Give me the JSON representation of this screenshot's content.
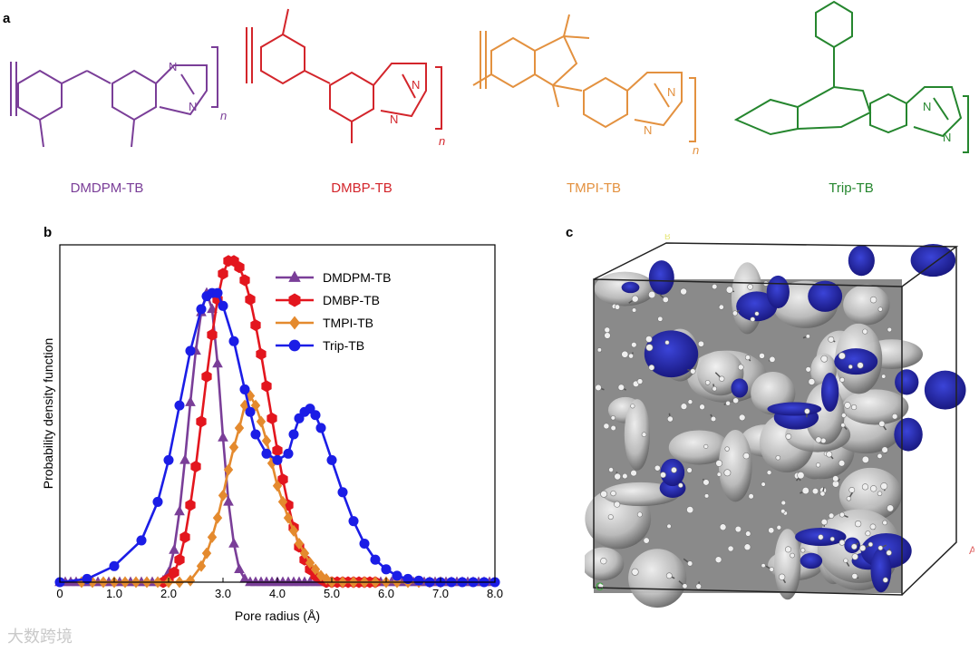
{
  "panels": {
    "a": "a",
    "b": "b",
    "c": "c"
  },
  "molecules": [
    {
      "name": "DMDPM-TB",
      "color": "#7a3e98",
      "repeat": "n"
    },
    {
      "name": "DMBP-TB",
      "color": "#d3252b",
      "repeat": "n"
    },
    {
      "name": "TMPI-TB",
      "color": "#e3913f",
      "repeat": "n"
    },
    {
      "name": "Trip-TB",
      "color": "#25862e",
      "repeat": "n"
    }
  ],
  "structure_atoms": {
    "nitrogen": "N"
  },
  "chart_data": {
    "type": "line",
    "xlabel": "Pore radius (Å)",
    "ylabel": "Probability density function",
    "xlim": [
      0,
      8
    ],
    "xticks": [
      "0",
      "1.0",
      "2.0",
      "3.0",
      "4.0",
      "5.0",
      "6.0",
      "7.0",
      "8.0"
    ],
    "ylim": [
      0,
      1.05
    ],
    "legend_position": "top-right",
    "series": [
      {
        "name": "DMDPM-TB",
        "color": "#7a3e98",
        "marker": "triangle",
        "x": [
          0,
          0.1,
          0.2,
          0.3,
          0.4,
          0.5,
          0.6,
          0.7,
          0.8,
          0.9,
          1.0,
          1.1,
          1.2,
          1.3,
          1.4,
          1.5,
          1.6,
          1.7,
          1.8,
          1.9,
          2.0,
          2.1,
          2.2,
          2.3,
          2.4,
          2.5,
          2.6,
          2.7,
          2.8,
          2.9,
          3.0,
          3.1,
          3.2,
          3.3,
          3.4,
          3.5,
          3.6,
          3.7,
          3.8,
          3.9,
          4.0,
          4.1,
          4.2,
          4.3,
          4.4,
          4.5,
          4.6,
          4.7,
          4.8,
          4.9,
          5.0,
          5.1,
          5.2,
          5.3,
          5.4,
          5.5,
          5.6,
          5.7,
          5.8,
          5.9,
          6.0,
          6.1,
          6.2,
          6.3,
          6.4,
          6.5,
          6.6,
          6.7,
          6.8,
          6.9,
          7.0,
          7.1,
          7.2,
          7.3,
          7.4,
          7.5,
          7.6,
          7.7,
          7.8,
          7.9
        ],
        "y": [
          0,
          0,
          0,
          0,
          0,
          0,
          0,
          0,
          0,
          0,
          0,
          0,
          0,
          0,
          0,
          0,
          0,
          0,
          0,
          0.005,
          0.03,
          0.1,
          0.22,
          0.38,
          0.56,
          0.72,
          0.84,
          0.9,
          0.85,
          0.68,
          0.45,
          0.25,
          0.12,
          0.04,
          0.01,
          0,
          0,
          0,
          0,
          0,
          0,
          0,
          0,
          0,
          0,
          0,
          0,
          0,
          0,
          0,
          0,
          0,
          0,
          0,
          0,
          0,
          0,
          0,
          0,
          0,
          0,
          0,
          0,
          0,
          0,
          0,
          0,
          0,
          0,
          0,
          0,
          0,
          0,
          0,
          0,
          0,
          0,
          0,
          0,
          0
        ]
      },
      {
        "name": "DMBP-TB",
        "color": "#e3161e",
        "marker": "hexagon",
        "x": [
          1.9,
          2.0,
          2.1,
          2.2,
          2.3,
          2.4,
          2.5,
          2.6,
          2.7,
          2.8,
          2.9,
          3.0,
          3.1,
          3.2,
          3.3,
          3.4,
          3.5,
          3.6,
          3.7,
          3.8,
          3.9,
          4.0,
          4.1,
          4.2,
          4.3,
          4.4,
          4.5,
          4.6,
          4.7,
          4.8,
          4.9,
          5.0,
          5.1,
          5.2,
          5.3,
          5.4,
          5.5,
          5.6,
          5.7,
          5.8
        ],
        "y": [
          0,
          0.01,
          0.03,
          0.07,
          0.14,
          0.24,
          0.36,
          0.5,
          0.64,
          0.77,
          0.88,
          0.96,
          1.0,
          1.0,
          0.98,
          0.94,
          0.88,
          0.8,
          0.71,
          0.61,
          0.51,
          0.41,
          0.32,
          0.24,
          0.17,
          0.11,
          0.07,
          0.04,
          0.02,
          0.01,
          0,
          0,
          0,
          0,
          0,
          0,
          0,
          0,
          0,
          0
        ]
      },
      {
        "name": "TMPI-TB",
        "color": "#e48a2e",
        "marker": "diamond",
        "x": [
          0.4,
          0.6,
          0.8,
          1.0,
          1.2,
          1.4,
          1.6,
          1.8,
          2.0,
          2.2,
          2.4,
          2.6,
          2.7,
          2.8,
          2.9,
          3.0,
          3.1,
          3.2,
          3.3,
          3.4,
          3.5,
          3.6,
          3.7,
          3.8,
          3.9,
          4.0,
          4.1,
          4.2,
          4.3,
          4.4,
          4.5,
          4.6,
          4.7,
          4.8,
          4.9,
          5.0,
          5.2,
          5.4,
          5.6,
          5.8,
          6.0,
          6.2,
          6.4,
          6.6,
          6.8,
          7.0
        ],
        "y": [
          0,
          0,
          0,
          0,
          0,
          0,
          0,
          0,
          0,
          0,
          0.005,
          0.05,
          0.09,
          0.14,
          0.2,
          0.27,
          0.35,
          0.42,
          0.48,
          0.55,
          0.58,
          0.55,
          0.5,
          0.44,
          0.37,
          0.3,
          0.25,
          0.2,
          0.16,
          0.12,
          0.09,
          0.06,
          0.04,
          0.02,
          0.01,
          0,
          0,
          0,
          0,
          0,
          0,
          0,
          0,
          0,
          0,
          0
        ]
      },
      {
        "name": "Trip-TB",
        "color": "#1b1de6",
        "marker": "circle",
        "x": [
          0,
          0.5,
          1.0,
          1.5,
          1.8,
          2.0,
          2.2,
          2.4,
          2.6,
          2.7,
          2.8,
          2.9,
          3.0,
          3.2,
          3.4,
          3.5,
          3.6,
          3.8,
          4.0,
          4.2,
          4.3,
          4.4,
          4.5,
          4.6,
          4.7,
          4.8,
          5.0,
          5.2,
          5.4,
          5.6,
          5.8,
          6.0,
          6.2,
          6.4,
          6.6,
          6.8,
          7.0,
          7.2,
          7.4,
          7.6,
          7.8,
          8.0
        ],
        "y": [
          0,
          0.01,
          0.05,
          0.13,
          0.25,
          0.38,
          0.55,
          0.72,
          0.85,
          0.89,
          0.9,
          0.9,
          0.86,
          0.75,
          0.6,
          0.53,
          0.46,
          0.4,
          0.38,
          0.4,
          0.46,
          0.51,
          0.53,
          0.54,
          0.52,
          0.48,
          0.38,
          0.28,
          0.19,
          0.12,
          0.07,
          0.04,
          0.02,
          0.01,
          0.005,
          0,
          0,
          0,
          0,
          0,
          0,
          0
        ]
      }
    ]
  },
  "render3d": {
    "axis_labels": {
      "a": "A",
      "b": "B",
      "c": "C"
    }
  },
  "watermark": "大数跨境"
}
